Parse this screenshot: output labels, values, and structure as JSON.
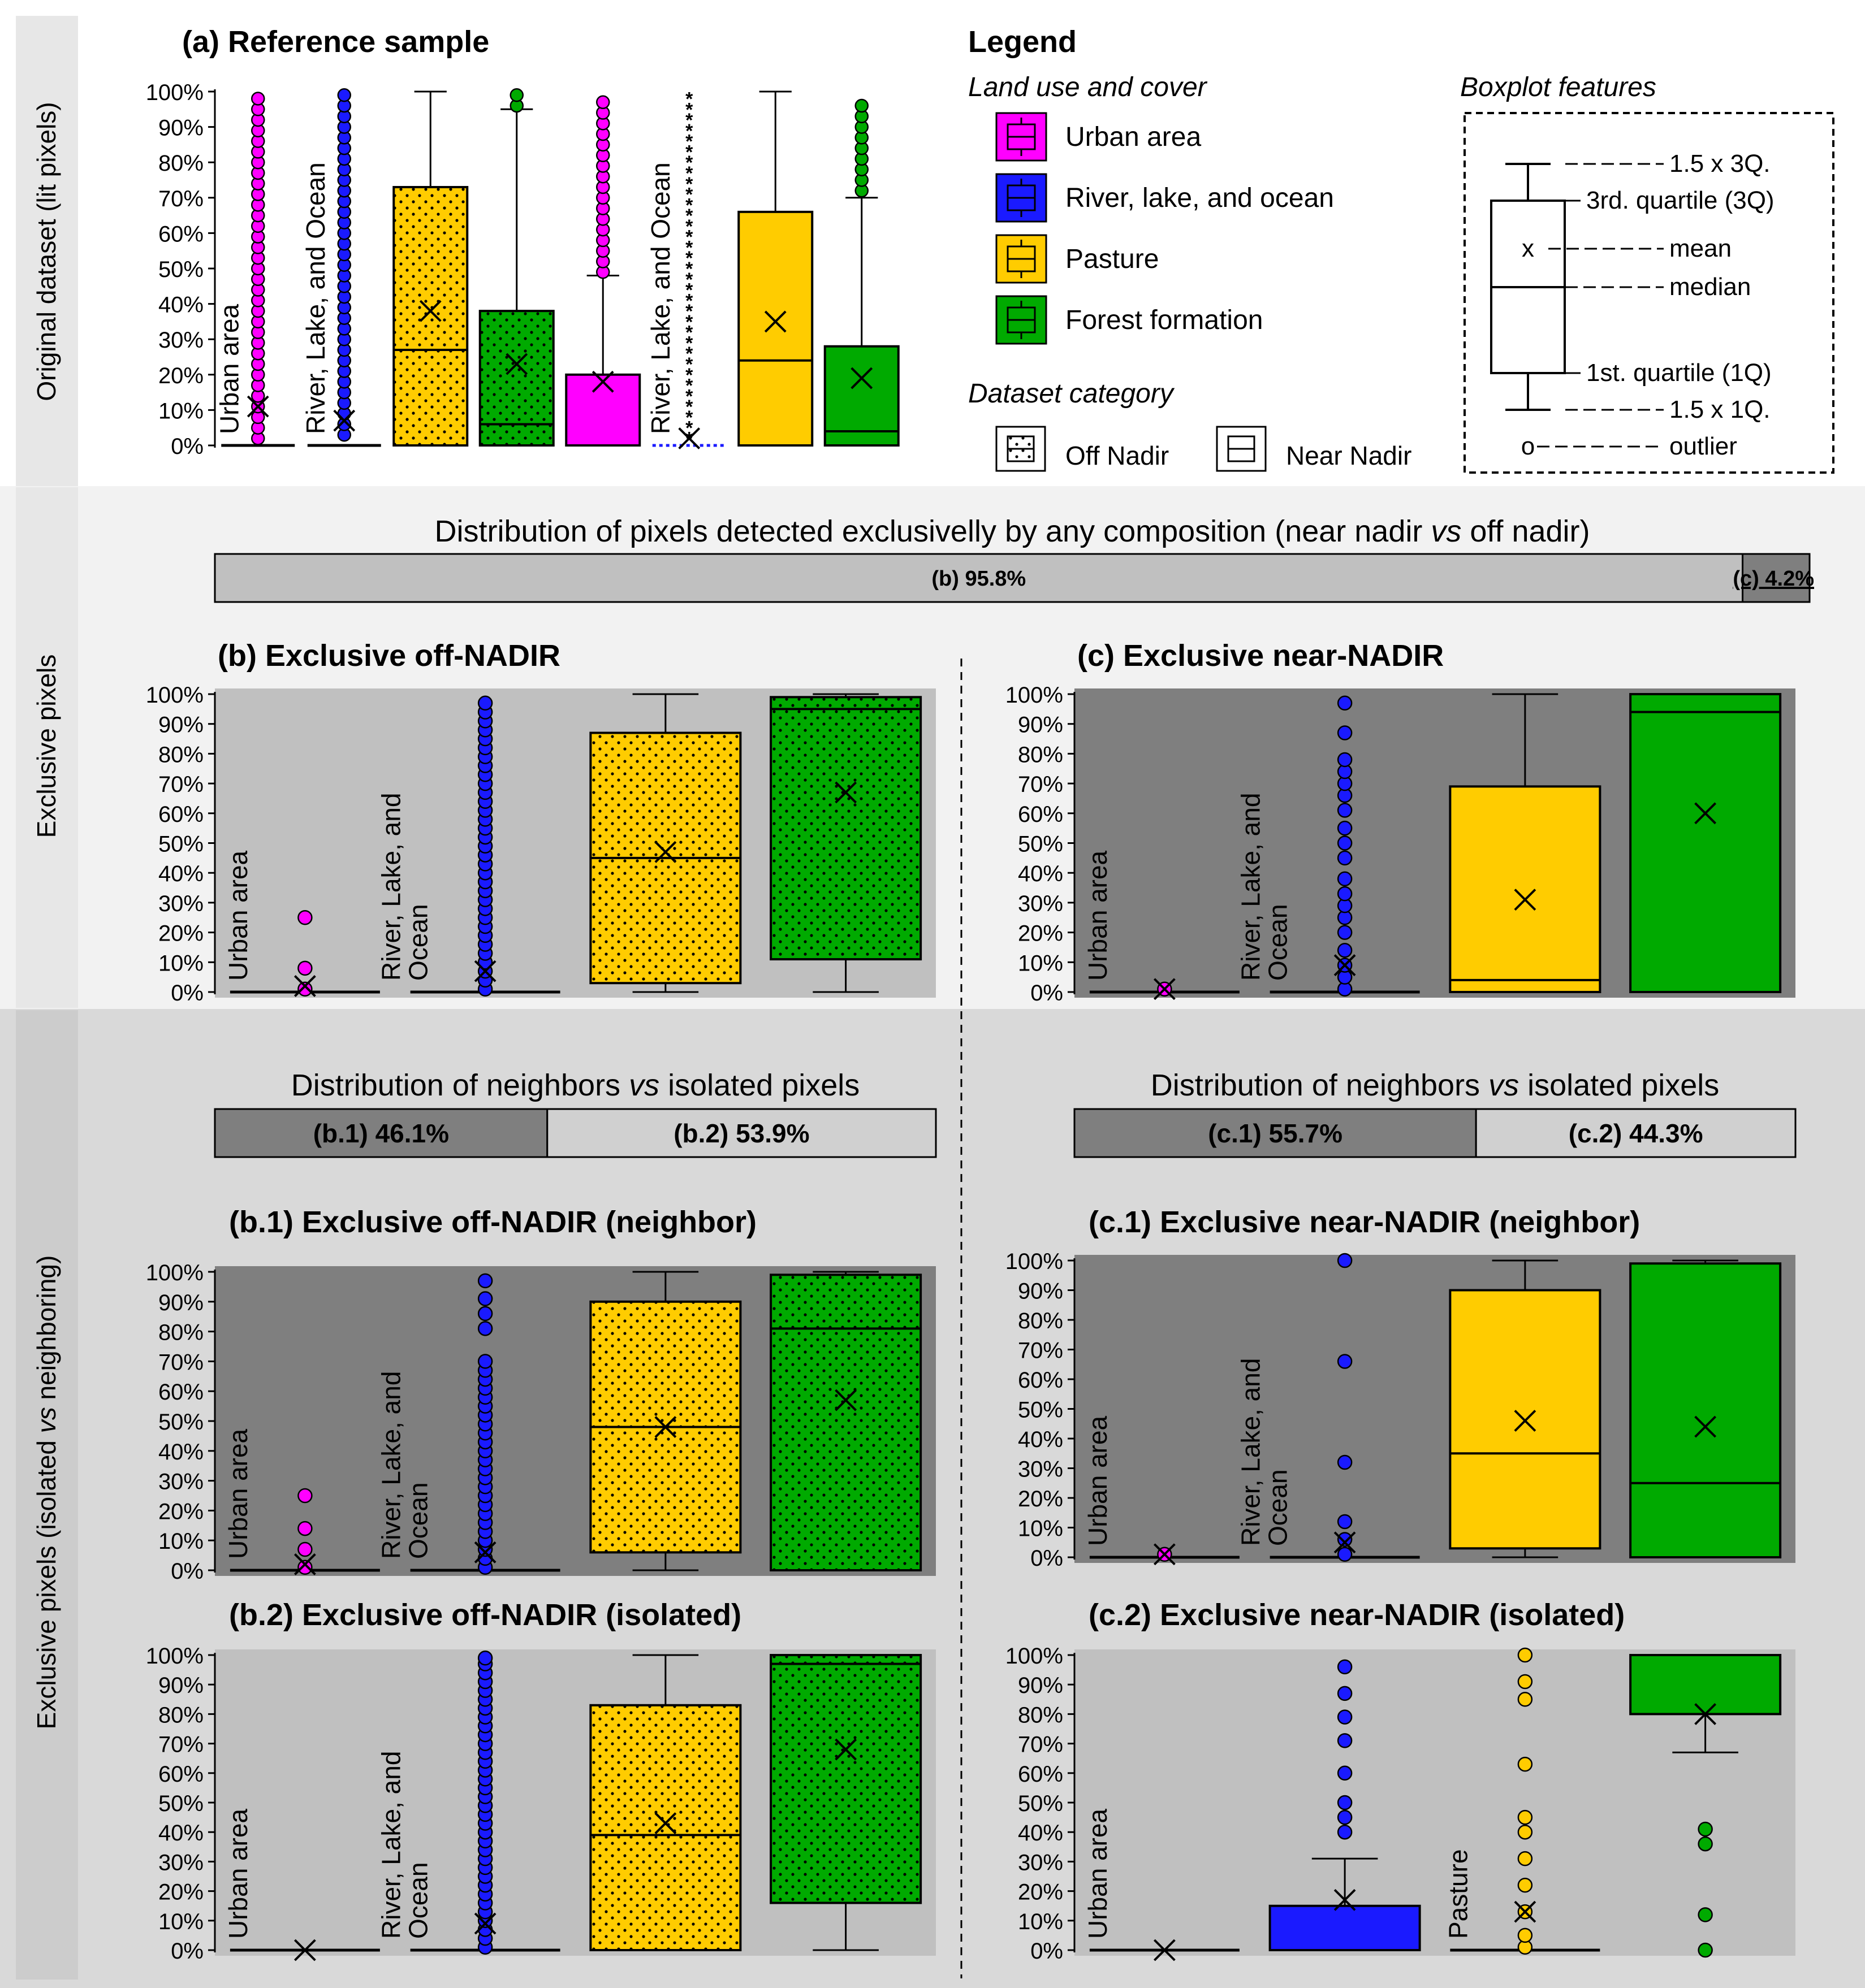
{
  "row_labels": {
    "top": "Original dataset (lit pixels)",
    "middle": "Exclusive pixels",
    "bottom": "Exclusive pixels (isolated vs neighboring)"
  },
  "legend": {
    "title": "Legend",
    "land_title": "Land use and cover",
    "land_items": [
      {
        "label": "Urban area",
        "color": "#ff00ff"
      },
      {
        "label": "River, lake, and ocean",
        "color": "#1a1aff"
      },
      {
        "label": "Pasture",
        "color": "#ffcc00"
      },
      {
        "label": "Forest formation",
        "color": "#00aa00"
      }
    ],
    "dataset_title": "Dataset category",
    "off_nadir": "Off Nadir",
    "near_nadir": "Near Nadir",
    "boxplot_title": "Boxplot features",
    "box_labels": {
      "upper": "1.5 x 3Q.",
      "q3": "3rd. quartile (3Q)",
      "mean_marker": "x",
      "mean": "mean",
      "median": "median",
      "q1": "1st. quartile (1Q)",
      "lower": "1.5 x 1Q.",
      "outlier_marker": "o",
      "outlier": "outlier"
    }
  },
  "distributions": {
    "main": {
      "title": "Distribution of pixels detected exclusivelly by any composition (near nadir vs off nadir)",
      "left_label": "(b) 95.8%",
      "left_value": 95.8,
      "right_label": "(c) 4.2%",
      "right_value": 4.2
    },
    "b": {
      "title": "Distribution of neighbors vs isolated pixels",
      "left_label": "(b.1) 46.1%",
      "left_value": 46.1,
      "right_label": "(b.2) 53.9%",
      "right_value": 53.9
    },
    "c": {
      "title": "Distribution of neighbors vs isolated pixels",
      "left_label": "(c.1) 55.7%",
      "left_value": 55.7,
      "right_label": "(c.2) 44.3%",
      "right_value": 44.3
    }
  },
  "chart_data": [
    {
      "id": "a",
      "type": "boxplot",
      "title": "(a) Reference sample",
      "background": "#ffffff",
      "yticks": [
        "0%",
        "10%",
        "20%",
        "30%",
        "40%",
        "50%",
        "60%",
        "70%",
        "80%",
        "90%",
        "100%"
      ],
      "ylim": [
        0,
        100
      ],
      "boxes": [
        {
          "category": "Urban area",
          "dataset": "off_nadir",
          "color": "#ff00ff",
          "q1": 0,
          "median": 0,
          "q3": 0,
          "wlow": 0,
          "whigh": 0,
          "mean": 11,
          "outliers": [
            2,
            5,
            8,
            11,
            14,
            17,
            20,
            23,
            26,
            29,
            32,
            35,
            38,
            41,
            44,
            47,
            50,
            53,
            56,
            59,
            62,
            65,
            68,
            71,
            74,
            77,
            80,
            83,
            86,
            89,
            92,
            95,
            98
          ],
          "vlabel": "Urban area"
        },
        {
          "category": "River, lake, and ocean",
          "dataset": "off_nadir",
          "color": "#1a1aff",
          "q1": 0,
          "median": 0,
          "q3": 0,
          "wlow": 0,
          "whigh": 0,
          "mean": 7,
          "outliers": [
            3,
            6,
            9,
            12,
            15,
            18,
            21,
            24,
            27,
            30,
            33,
            36,
            39,
            42,
            45,
            48,
            51,
            54,
            57,
            60,
            63,
            66,
            69,
            72,
            75,
            78,
            81,
            84,
            87,
            90,
            93,
            96,
            99
          ],
          "vlabel": "River, Lake, and Ocean"
        },
        {
          "category": "Pasture",
          "dataset": "off_nadir",
          "color": "#ffcc00",
          "q1": 0,
          "median": 27,
          "q3": 73,
          "wlow": 0,
          "whigh": 100,
          "mean": 38,
          "outliers": []
        },
        {
          "category": "Forest formation",
          "dataset": "off_nadir",
          "color": "#00aa00",
          "q1": 0,
          "median": 6,
          "q3": 38,
          "wlow": 0,
          "whigh": 95,
          "mean": 23,
          "outliers": [
            96,
            99
          ]
        },
        {
          "category": "Urban area",
          "dataset": "near_nadir",
          "color": "#ff00ff",
          "q1": 0,
          "median": 0,
          "q3": 20,
          "wlow": 0,
          "whigh": 48,
          "mean": 18,
          "outliers": [
            49,
            52,
            55,
            58,
            61,
            64,
            67,
            70,
            73,
            76,
            79,
            82,
            85,
            88,
            91,
            94,
            97
          ]
        },
        {
          "category": "River, lake, and ocean",
          "dataset": "near_nadir",
          "color": "#1a1aff",
          "q1": 0,
          "median": 0,
          "q3": 0,
          "wlow": 0,
          "whigh": 0,
          "mean": 2,
          "outliers": [
            2,
            5,
            8,
            11,
            14,
            17,
            20,
            23,
            26,
            29,
            32,
            35,
            38,
            41,
            44,
            47,
            50,
            53,
            56,
            59,
            62,
            65,
            68,
            71,
            74,
            77,
            80,
            83,
            86,
            89,
            92,
            95,
            98
          ],
          "star": true,
          "vlabel": "River, Lake, and Ocean"
        },
        {
          "category": "Pasture",
          "dataset": "near_nadir",
          "color": "#ffcc00",
          "q1": 0,
          "median": 24,
          "q3": 66,
          "wlow": 0,
          "whigh": 100,
          "mean": 35,
          "outliers": []
        },
        {
          "category": "Forest formation",
          "dataset": "near_nadir",
          "color": "#00aa00",
          "q1": 0,
          "median": 4,
          "q3": 28,
          "wlow": 0,
          "whigh": 70,
          "mean": 19,
          "outliers": [
            72,
            75,
            78,
            81,
            84,
            87,
            90,
            93,
            96
          ]
        }
      ]
    },
    {
      "id": "b",
      "type": "boxplot",
      "title": "(b) Exclusive off-NADIR",
      "background": "#c0c0c0",
      "yticks": [
        "0%",
        "10%",
        "20%",
        "30%",
        "40%",
        "50%",
        "60%",
        "70%",
        "80%",
        "90%",
        "100%"
      ],
      "ylim": [
        0,
        100
      ],
      "boxes": [
        {
          "category": "Urban area",
          "dataset": "off_nadir",
          "color": "#ff00ff",
          "q1": 0,
          "median": 0,
          "q3": 0,
          "wlow": 0,
          "whigh": 0,
          "mean": 2,
          "outliers": [
            1,
            8,
            25
          ],
          "vlabel": "Urban area"
        },
        {
          "category": "River, lake, and ocean",
          "dataset": "off_nadir",
          "color": "#1a1aff",
          "q1": 0,
          "median": 0,
          "q3": 0,
          "wlow": 0,
          "whigh": 0,
          "mean": 7,
          "outliers": [
            1,
            4,
            7,
            10,
            13,
            16,
            19,
            22,
            25,
            28,
            31,
            34,
            37,
            40,
            43,
            46,
            49,
            52,
            55,
            58,
            61,
            64,
            67,
            70,
            73,
            76,
            79,
            82,
            85,
            88,
            91,
            94,
            97
          ],
          "vlabel": "River, Lake, and Ocean"
        },
        {
          "category": "Pasture",
          "dataset": "off_nadir",
          "color": "#ffcc00",
          "q1": 3,
          "median": 45,
          "q3": 87,
          "wlow": 0,
          "whigh": 100,
          "mean": 47,
          "outliers": []
        },
        {
          "category": "Forest formation",
          "dataset": "off_nadir",
          "color": "#00aa00",
          "q1": 11,
          "median": 95,
          "q3": 99,
          "wlow": 0,
          "whigh": 100,
          "mean": 67,
          "outliers": []
        }
      ]
    },
    {
      "id": "c",
      "type": "boxplot",
      "title": "(c) Exclusive near-NADIR",
      "background": "#7f7f7f",
      "yticks": [
        "0%",
        "10%",
        "20%",
        "30%",
        "40%",
        "50%",
        "60%",
        "70%",
        "80%",
        "90%",
        "100%"
      ],
      "ylim": [
        0,
        100
      ],
      "boxes": [
        {
          "category": "Urban area",
          "dataset": "near_nadir",
          "color": "#ff00ff",
          "q1": 0,
          "median": 0,
          "q3": 0,
          "wlow": 0,
          "whigh": 0,
          "mean": 1,
          "outliers": [
            1
          ],
          "vlabel": "Urban area"
        },
        {
          "category": "River, lake, and ocean",
          "dataset": "near_nadir",
          "color": "#1a1aff",
          "q1": 0,
          "median": 0,
          "q3": 0,
          "wlow": 0,
          "whigh": 0,
          "mean": 9,
          "outliers": [
            1,
            5,
            9,
            14,
            20,
            25,
            29,
            33,
            38,
            45,
            50,
            55,
            61,
            66,
            70,
            74,
            78,
            87,
            97
          ],
          "vlabel": "River, Lake, and Ocean"
        },
        {
          "category": "Pasture",
          "dataset": "near_nadir",
          "color": "#ffcc00",
          "q1": 0,
          "median": 4,
          "q3": 69,
          "wlow": 0,
          "whigh": 100,
          "mean": 31,
          "outliers": []
        },
        {
          "category": "Forest formation",
          "dataset": "near_nadir",
          "color": "#00aa00",
          "q1": 0,
          "median": 94,
          "q3": 100,
          "wlow": 0,
          "whigh": 100,
          "mean": 60,
          "outliers": []
        }
      ]
    },
    {
      "id": "b1",
      "type": "boxplot",
      "title": "(b.1) Exclusive off-NADIR (neighbor)",
      "background": "#7f7f7f",
      "yticks": [
        "0%",
        "10%",
        "20%",
        "30%",
        "40%",
        "50%",
        "60%",
        "70%",
        "80%",
        "90%",
        "100%"
      ],
      "ylim": [
        0,
        100
      ],
      "boxes": [
        {
          "category": "Urban area",
          "dataset": "off_nadir",
          "color": "#ff00ff",
          "q1": 0,
          "median": 0,
          "q3": 0,
          "wlow": 0,
          "whigh": 0,
          "mean": 2,
          "outliers": [
            1,
            7,
            14,
            25
          ],
          "vlabel": "Urban area"
        },
        {
          "category": "River, lake, and ocean",
          "dataset": "off_nadir",
          "color": "#1a1aff",
          "q1": 0,
          "median": 0,
          "q3": 0,
          "wlow": 0,
          "whigh": 0,
          "mean": 6,
          "outliers": [
            1,
            4,
            7,
            10,
            13,
            16,
            19,
            22,
            25,
            28,
            31,
            34,
            37,
            40,
            43,
            46,
            49,
            52,
            55,
            58,
            61,
            64,
            67,
            70,
            81,
            86,
            91,
            97
          ],
          "vlabel": "River, Lake, and Ocean"
        },
        {
          "category": "Pasture",
          "dataset": "off_nadir",
          "color": "#ffcc00",
          "q1": 6,
          "median": 48,
          "q3": 90,
          "wlow": 0,
          "whigh": 100,
          "mean": 48,
          "outliers": []
        },
        {
          "category": "Forest formation",
          "dataset": "off_nadir",
          "color": "#00aa00",
          "q1": 0,
          "median": 81,
          "q3": 99,
          "wlow": 0,
          "whigh": 100,
          "mean": 57,
          "outliers": []
        }
      ]
    },
    {
      "id": "c1",
      "type": "boxplot",
      "title": "(c.1) Exclusive near-NADIR (neighbor)",
      "background": "#7f7f7f",
      "yticks": [
        "0%",
        "10%",
        "20%",
        "30%",
        "40%",
        "50%",
        "60%",
        "70%",
        "80%",
        "90%",
        "100%"
      ],
      "ylim": [
        0,
        100
      ],
      "boxes": [
        {
          "category": "Urban area",
          "dataset": "near_nadir",
          "color": "#ff00ff",
          "q1": 0,
          "median": 0,
          "q3": 0,
          "wlow": 0,
          "whigh": 0,
          "mean": 1,
          "outliers": [
            1
          ],
          "vlabel": "Urban area"
        },
        {
          "category": "River, lake, and ocean",
          "dataset": "near_nadir",
          "color": "#1a1aff",
          "q1": 0,
          "median": 0,
          "q3": 0,
          "wlow": 0,
          "whigh": 0,
          "mean": 5,
          "outliers": [
            1,
            6,
            12,
            32,
            66,
            100
          ],
          "vlabel": "River, Lake, and Ocean"
        },
        {
          "category": "Pasture",
          "dataset": "near_nadir",
          "color": "#ffcc00",
          "q1": 3,
          "median": 35,
          "q3": 90,
          "wlow": 0,
          "whigh": 100,
          "mean": 46,
          "outliers": []
        },
        {
          "category": "Forest formation",
          "dataset": "near_nadir",
          "color": "#00aa00",
          "q1": 0,
          "median": 25,
          "q3": 99,
          "wlow": 0,
          "whigh": 100,
          "mean": 44,
          "outliers": []
        }
      ]
    },
    {
      "id": "b2",
      "type": "boxplot",
      "title": "(b.2) Exclusive off-NADIR (isolated)",
      "background": "#c0c0c0",
      "yticks": [
        "0%",
        "10%",
        "20%",
        "30%",
        "40%",
        "50%",
        "60%",
        "70%",
        "80%",
        "90%",
        "100%"
      ],
      "ylim": [
        0,
        100
      ],
      "boxes": [
        {
          "category": "Urban area",
          "dataset": "off_nadir",
          "color": "#ff00ff",
          "q1": 0,
          "median": 0,
          "q3": 0,
          "wlow": 0,
          "whigh": 0,
          "mean": 0,
          "outliers": [],
          "vlabel": "Urban area"
        },
        {
          "category": "River, lake, and ocean",
          "dataset": "off_nadir",
          "color": "#1a1aff",
          "q1": 0,
          "median": 0,
          "q3": 0,
          "wlow": 0,
          "whigh": 0,
          "mean": 9,
          "outliers": [
            1,
            4,
            7,
            10,
            13,
            16,
            19,
            22,
            25,
            28,
            31,
            34,
            37,
            40,
            43,
            46,
            49,
            52,
            55,
            58,
            61,
            64,
            67,
            70,
            73,
            76,
            79,
            82,
            85,
            88,
            91,
            94,
            97,
            99
          ],
          "vlabel": "River, Lake, and Ocean"
        },
        {
          "category": "Pasture",
          "dataset": "off_nadir",
          "color": "#ffcc00",
          "q1": 0,
          "median": 39,
          "q3": 83,
          "wlow": 0,
          "whigh": 100,
          "mean": 43,
          "outliers": []
        },
        {
          "category": "Forest formation",
          "dataset": "off_nadir",
          "color": "#00aa00",
          "q1": 16,
          "median": 97,
          "q3": 100,
          "wlow": 0,
          "whigh": 100,
          "mean": 68,
          "outliers": []
        }
      ]
    },
    {
      "id": "c2",
      "type": "boxplot",
      "title": "(c.2) Exclusive near-NADIR (isolated)",
      "background": "#c0c0c0",
      "yticks": [
        "0%",
        "10%",
        "20%",
        "30%",
        "40%",
        "50%",
        "60%",
        "70%",
        "80%",
        "90%",
        "100%"
      ],
      "ylim": [
        0,
        100
      ],
      "boxes": [
        {
          "category": "Urban area",
          "dataset": "near_nadir",
          "color": "#ff00ff",
          "q1": 0,
          "median": 0,
          "q3": 0,
          "wlow": 0,
          "whigh": 0,
          "mean": 0,
          "outliers": [],
          "vlabel": "Urban area"
        },
        {
          "category": "River, lake, and ocean",
          "dataset": "near_nadir",
          "color": "#1a1aff",
          "q1": 0,
          "median": 0,
          "q3": 15,
          "wlow": 0,
          "whigh": 31,
          "mean": 17,
          "outliers": [
            40,
            45,
            50,
            60,
            71,
            79,
            87,
            96
          ]
        },
        {
          "category": "Pasture",
          "dataset": "near_nadir",
          "color": "#ffcc00",
          "q1": 0,
          "median": 0,
          "q3": 0,
          "wlow": 0,
          "whigh": 0,
          "mean": 13,
          "outliers": [
            1,
            5,
            13,
            22,
            31,
            40,
            45,
            63,
            85,
            91,
            100
          ],
          "vlabel": "Pasture"
        },
        {
          "category": "Forest formation",
          "dataset": "near_nadir",
          "color": "#00aa00",
          "q1": 80,
          "median": 100,
          "q3": 100,
          "wlow": 67,
          "whigh": 100,
          "mean": 80,
          "outliers": [
            0,
            12,
            36,
            41
          ]
        }
      ]
    }
  ]
}
